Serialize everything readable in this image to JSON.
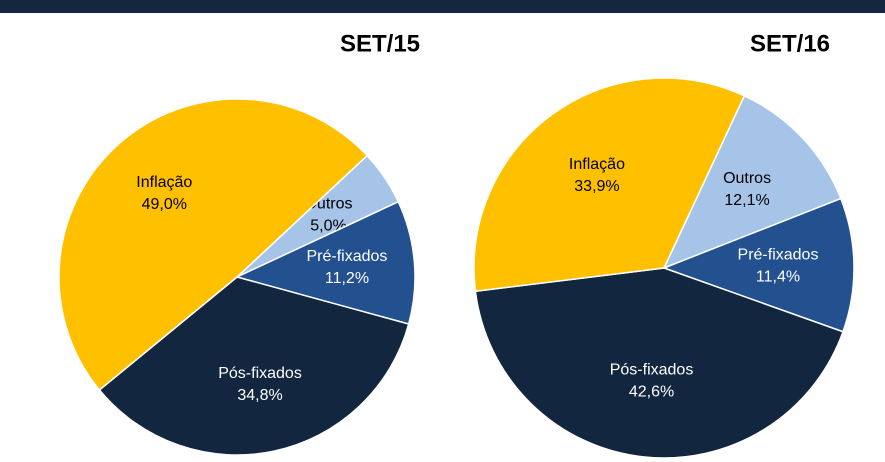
{
  "chart_data": [
    {
      "type": "pie",
      "title": "SET/15",
      "categories": [
        "Outros",
        "Pré-fixados",
        "Pós-fixados",
        "Inflação"
      ],
      "values": [
        5.0,
        11.2,
        34.8,
        49.0
      ],
      "value_labels": [
        "5,0%",
        "11,2%",
        "34,8%",
        "49,0%"
      ],
      "colors": [
        "#a6c4e8",
        "#23508f",
        "#12263f",
        "#ffc000"
      ]
    },
    {
      "type": "pie",
      "title": "SET/16",
      "categories": [
        "Outros",
        "Pré-fixados",
        "Pós-fixados",
        "Inflação"
      ],
      "values": [
        12.1,
        11.4,
        42.6,
        33.9
      ],
      "value_labels": [
        "12,1%",
        "11,4%",
        "42,6%",
        "33,9%"
      ],
      "colors": [
        "#a6c4e8",
        "#23508f",
        "#12263f",
        "#ffc000"
      ]
    }
  ]
}
